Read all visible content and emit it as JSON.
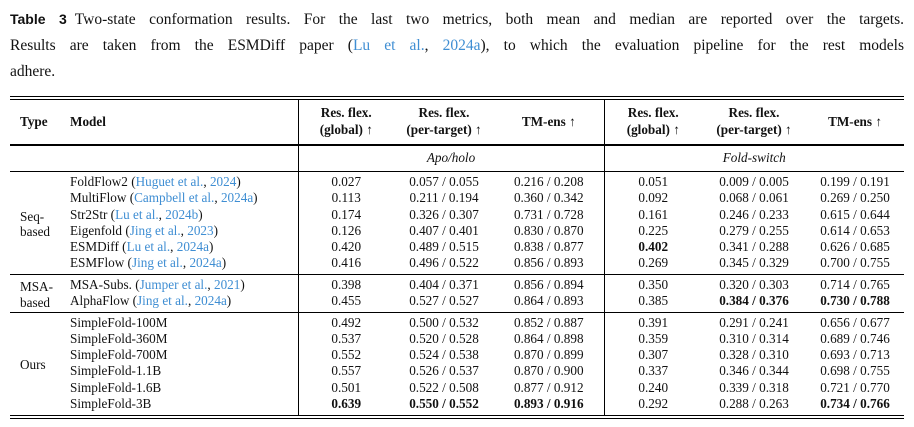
{
  "colors": {
    "citation_link": "#3f8ed3"
  },
  "caption": {
    "label": "Table 3",
    "line1": "Two-state conformation results. For the last two metrics, both mean and median are reported over the targets.",
    "line2_pre": "Results are taken from the ESMDiff paper (",
    "cite_author": "Lu et al.",
    "cite_sep": ", ",
    "cite_year": "2024a",
    "line2_post": "), to which the evaluation pipeline for the rest models",
    "line3": "adhere."
  },
  "table": {
    "col_type": "Type",
    "col_model": "Model",
    "metric_columns": [
      {
        "lines": [
          "Res. flex.",
          "(global) ↑"
        ]
      },
      {
        "lines": [
          "Res. flex.",
          "(per-target) ↑"
        ]
      },
      {
        "lines": [
          "TM-ens ↑"
        ]
      },
      {
        "lines": [
          "Res. flex.",
          "(global) ↑"
        ]
      },
      {
        "lines": [
          "Res. flex.",
          "(per-target) ↑"
        ]
      },
      {
        "lines": [
          "TM-ens ↑"
        ]
      }
    ],
    "group_headers": [
      "Apo/holo",
      "Fold-switch"
    ],
    "groups": [
      {
        "type_lines": [
          "Seq-",
          "based"
        ],
        "rows": [
          {
            "model": "FoldFlow2",
            "cite_author": "Huguet et al.",
            "cite_year": "2024",
            "values": [
              "0.027",
              "0.057 / 0.055",
              "0.216 / 0.208",
              "0.051",
              "0.009 / 0.005",
              "0.199 / 0.191"
            ],
            "bold": []
          },
          {
            "model": "MultiFlow",
            "cite_author": "Campbell et al.",
            "cite_year": "2024a",
            "values": [
              "0.113",
              "0.211 / 0.194",
              "0.360 / 0.342",
              "0.092",
              "0.068 / 0.061",
              "0.269 / 0.250"
            ],
            "bold": []
          },
          {
            "model": "Str2Str",
            "cite_author": "Lu et al.",
            "cite_year": "2024b",
            "values": [
              "0.174",
              "0.326 / 0.307",
              "0.731 / 0.728",
              "0.161",
              "0.246 / 0.233",
              "0.615 / 0.644"
            ],
            "bold": []
          },
          {
            "model": "Eigenfold",
            "cite_author": "Jing et al.",
            "cite_year": "2023",
            "values": [
              "0.126",
              "0.407 / 0.401",
              "0.830 / 0.870",
              "0.225",
              "0.279 / 0.255",
              "0.614 / 0.653"
            ],
            "bold": []
          },
          {
            "model": "ESMDiff",
            "cite_author": "Lu et al.",
            "cite_year": "2024a",
            "values": [
              "0.420",
              "0.489 / 0.515",
              "0.838 / 0.877",
              "0.402",
              "0.341 / 0.288",
              "0.626 / 0.685"
            ],
            "bold": [
              3
            ]
          },
          {
            "model": "ESMFlow",
            "cite_author": "Jing et al.",
            "cite_year": "2024a",
            "values": [
              "0.416",
              "0.496 / 0.522",
              "0.856 / 0.893",
              "0.269",
              "0.345 / 0.329",
              "0.700 / 0.755"
            ],
            "bold": []
          }
        ]
      },
      {
        "type_lines": [
          "MSA-",
          "based"
        ],
        "rows": [
          {
            "model": "MSA-Subs.",
            "cite_author": "Jumper et al.",
            "cite_year": "2021",
            "values": [
              "0.398",
              "0.404 / 0.371",
              "0.856 / 0.894",
              "0.350",
              "0.320 / 0.303",
              "0.714 / 0.765"
            ],
            "bold": []
          },
          {
            "model": "AlphaFlow",
            "cite_author": "Jing et al.",
            "cite_year": "2024a",
            "values": [
              "0.455",
              "0.527 / 0.527",
              "0.864 / 0.893",
              "0.385",
              "0.384 / 0.376",
              "0.730 / 0.788"
            ],
            "bold": [
              4,
              5
            ]
          }
        ]
      },
      {
        "type_lines": [
          "Ours"
        ],
        "rows": [
          {
            "model": "SimpleFold-100M",
            "values": [
              "0.492",
              "0.500 / 0.532",
              "0.852 / 0.887",
              "0.391",
              "0.291 / 0.241",
              "0.656 / 0.677"
            ],
            "bold": []
          },
          {
            "model": "SimpleFold-360M",
            "values": [
              "0.537",
              "0.520 / 0.528",
              "0.864 / 0.898",
              "0.359",
              "0.310 / 0.314",
              "0.689 / 0.746"
            ],
            "bold": []
          },
          {
            "model": "SimpleFold-700M",
            "values": [
              "0.552",
              "0.524 / 0.538",
              "0.870 / 0.899",
              "0.307",
              "0.328 / 0.310",
              "0.693 / 0.713"
            ],
            "bold": []
          },
          {
            "model": "SimpleFold-1.1B",
            "values": [
              "0.557",
              "0.526 / 0.537",
              "0.870 / 0.900",
              "0.337",
              "0.346 / 0.344",
              "0.698 / 0.755"
            ],
            "bold": []
          },
          {
            "model": "SimpleFold-1.6B",
            "values": [
              "0.501",
              "0.522 / 0.508",
              "0.877 / 0.912",
              "0.240",
              "0.339 / 0.318",
              "0.721 / 0.770"
            ],
            "bold": []
          },
          {
            "model": "SimpleFold-3B",
            "values": [
              "0.639",
              "0.550 / 0.552",
              "0.893 / 0.916",
              "0.292",
              "0.288 / 0.263",
              "0.734 / 0.766"
            ],
            "bold": [
              0,
              1,
              2,
              5
            ]
          }
        ]
      }
    ]
  }
}
